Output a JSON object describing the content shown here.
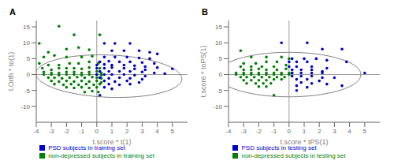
{
  "chart_data": [
    {
      "type": "scatter",
      "title": "A",
      "x_label": "t.score * t(1)",
      "y_label": "t.Orth * to(1)",
      "xlim": [
        -4,
        6
      ],
      "ylim": [
        -15,
        17
      ],
      "xticks": [
        -4,
        -3,
        -2,
        -1,
        0,
        1,
        2,
        3,
        4,
        5
      ],
      "yticks": [
        -10,
        -5,
        0,
        5,
        10,
        15
      ],
      "grid": false,
      "legend": "bottom",
      "reference_lines": {
        "x": [
          0
        ],
        "y": [
          0
        ]
      },
      "ellipse": {
        "center": [
          0.8,
          -0.5
        ],
        "width": 9.5,
        "height": 13.5,
        "angle": 10,
        "color": "#808080"
      },
      "series": [
        {
          "name": "non-depressed subjects in training set",
          "color": "#008000",
          "values": [
            [
              -3.8,
              9.8
            ],
            [
              -2.5,
              15.2
            ],
            [
              -1.5,
              12.5
            ],
            [
              0.2,
              12.5
            ],
            [
              -3.2,
              7.0
            ],
            [
              -2.0,
              8.0
            ],
            [
              -1.2,
              8.5
            ],
            [
              -0.5,
              7.8
            ],
            [
              -3.5,
              5.5
            ],
            [
              -2.8,
              6.0
            ],
            [
              -2.0,
              5.5
            ],
            [
              -1.0,
              5.5
            ],
            [
              -0.3,
              5.8
            ],
            [
              -3.8,
              3.5
            ],
            [
              -3.2,
              3.0
            ],
            [
              -2.5,
              3.0
            ],
            [
              -1.8,
              3.5
            ],
            [
              -1.2,
              3.5
            ],
            [
              -0.5,
              4.0
            ],
            [
              0.1,
              3.5
            ],
            [
              -3.6,
              2.0
            ],
            [
              -3.0,
              1.5
            ],
            [
              -2.5,
              2.0
            ],
            [
              -2.0,
              2.0
            ],
            [
              -1.5,
              2.0
            ],
            [
              -1.0,
              1.8
            ],
            [
              -0.5,
              2.2
            ],
            [
              0.2,
              2.0
            ],
            [
              -3.5,
              0.8
            ],
            [
              -3.0,
              0.5
            ],
            [
              -2.5,
              0.5
            ],
            [
              -2.0,
              0.8
            ],
            [
              -1.5,
              0.8
            ],
            [
              -1.0,
              0.5
            ],
            [
              -0.5,
              0.8
            ],
            [
              0.0,
              1.0
            ],
            [
              0.3,
              0.5
            ],
            [
              -3.5,
              0.0
            ],
            [
              -3.0,
              0.0
            ],
            [
              -2.5,
              -0.2
            ],
            [
              -2.0,
              0.0
            ],
            [
              -1.5,
              0.0
            ],
            [
              -1.0,
              -0.2
            ],
            [
              -0.5,
              0.0
            ],
            [
              0.0,
              0.0
            ],
            [
              0.3,
              -0.2
            ],
            [
              -3.2,
              -1.0
            ],
            [
              -2.8,
              -1.0
            ],
            [
              -2.3,
              -1.2
            ],
            [
              -1.8,
              -1.0
            ],
            [
              -1.3,
              -0.8
            ],
            [
              -0.8,
              -1.0
            ],
            [
              -0.3,
              -0.8
            ],
            [
              0.0,
              -1.0
            ],
            [
              0.3,
              -1.2
            ],
            [
              -3.0,
              -2.0
            ],
            [
              -2.5,
              -2.2
            ],
            [
              -2.0,
              -2.0
            ],
            [
              -1.5,
              -2.2
            ],
            [
              -1.0,
              -2.0
            ],
            [
              -0.5,
              -2.2
            ],
            [
              0.0,
              -2.0
            ],
            [
              0.3,
              -2.5
            ],
            [
              -2.8,
              -3.0
            ],
            [
              -2.2,
              -3.2
            ],
            [
              -1.7,
              -3.0
            ],
            [
              -1.2,
              -3.2
            ],
            [
              -0.7,
              -3.0
            ],
            [
              -0.2,
              -3.2
            ],
            [
              0.2,
              -3.0
            ],
            [
              -2.0,
              -4.0
            ],
            [
              -1.5,
              -4.2
            ],
            [
              -1.0,
              -4.0
            ],
            [
              -0.5,
              -4.2
            ],
            [
              0.0,
              -4.0
            ],
            [
              -0.8,
              -5.5
            ],
            [
              -0.3,
              -5.2
            ],
            [
              0.1,
              -5.5
            ]
          ]
        },
        {
          "name": "PSD subjects in training set",
          "color": "#0000CD",
          "values": [
            [
              0.5,
              9.8
            ],
            [
              1.2,
              9.8
            ],
            [
              2.2,
              9.8
            ],
            [
              1.0,
              7.5
            ],
            [
              1.8,
              7.5
            ],
            [
              2.8,
              7.5
            ],
            [
              3.5,
              7.0
            ],
            [
              4.0,
              6.5
            ],
            [
              0.5,
              5.5
            ],
            [
              1.2,
              5.5
            ],
            [
              2.0,
              5.5
            ],
            [
              2.8,
              5.2
            ],
            [
              3.5,
              5.0
            ],
            [
              0.2,
              4.0
            ],
            [
              0.8,
              4.2
            ],
            [
              1.5,
              4.0
            ],
            [
              2.2,
              4.0
            ],
            [
              3.0,
              3.8
            ],
            [
              3.8,
              3.5
            ],
            [
              0.0,
              3.0
            ],
            [
              0.5,
              3.2
            ],
            [
              1.0,
              3.0
            ],
            [
              1.8,
              3.0
            ],
            [
              2.5,
              2.8
            ],
            [
              3.2,
              2.5
            ],
            [
              4.0,
              2.2
            ],
            [
              5.0,
              1.8
            ],
            [
              0.0,
              2.0
            ],
            [
              0.5,
              2.0
            ],
            [
              1.0,
              2.2
            ],
            [
              1.8,
              2.0
            ],
            [
              2.5,
              1.8
            ],
            [
              3.2,
              1.5
            ],
            [
              0.2,
              1.0
            ],
            [
              0.8,
              1.0
            ],
            [
              1.5,
              1.0
            ],
            [
              2.2,
              1.0
            ],
            [
              3.0,
              0.8
            ],
            [
              3.8,
              0.5
            ],
            [
              4.5,
              0.3
            ],
            [
              0.0,
              0.0
            ],
            [
              0.5,
              0.0
            ],
            [
              1.0,
              0.0
            ],
            [
              1.8,
              0.0
            ],
            [
              2.5,
              -0.2
            ],
            [
              3.2,
              -0.5
            ],
            [
              0.2,
              -1.0
            ],
            [
              0.8,
              -1.2
            ],
            [
              1.5,
              -1.0
            ],
            [
              2.2,
              -1.2
            ],
            [
              3.0,
              -1.5
            ],
            [
              0.5,
              -2.0
            ],
            [
              1.2,
              -2.2
            ],
            [
              2.0,
              -2.0
            ],
            [
              2.8,
              -2.5
            ],
            [
              0.8,
              -3.0
            ],
            [
              1.5,
              -3.2
            ],
            [
              2.2,
              -3.0
            ],
            [
              0.5,
              -4.0
            ],
            [
              1.0,
              -4.5
            ],
            [
              0.2,
              -6.5
            ]
          ]
        }
      ]
    },
    {
      "type": "scatter",
      "title": "B",
      "x_label": "t.score * tPS(1)",
      "y_label": "t.score * toPS(1)",
      "xlim": [
        -4,
        6
      ],
      "ylim": [
        -15,
        17
      ],
      "xticks": [
        -4,
        -3,
        -2,
        -1,
        0,
        1,
        2,
        3,
        4,
        5
      ],
      "yticks": [
        -10,
        -5,
        0,
        5,
        10,
        15
      ],
      "grid": false,
      "legend": "bottom",
      "reference_lines": {
        "x": [
          0
        ],
        "y": [
          0
        ]
      },
      "ellipse": {
        "center": [
          0.0,
          0.0
        ],
        "width": 9.5,
        "height": 14.0,
        "angle": 0,
        "color": "#808080"
      },
      "series": [
        {
          "name": "non-depressed subjects in testing set",
          "color": "#008000",
          "values": [
            [
              -3.2,
              7.5
            ],
            [
              -2.5,
              5.5
            ],
            [
              -1.5,
              5.5
            ],
            [
              -0.5,
              5.5
            ],
            [
              -3.0,
              3.5
            ],
            [
              -2.2,
              3.5
            ],
            [
              -1.5,
              4.0
            ],
            [
              -0.8,
              4.0
            ],
            [
              0.0,
              5.0
            ],
            [
              -3.2,
              2.5
            ],
            [
              -2.5,
              2.5
            ],
            [
              -1.8,
              2.5
            ],
            [
              -1.0,
              2.5
            ],
            [
              -0.2,
              3.0
            ],
            [
              -3.0,
              1.5
            ],
            [
              -2.5,
              1.5
            ],
            [
              -2.0,
              1.8
            ],
            [
              -1.5,
              1.5
            ],
            [
              -0.8,
              1.5
            ],
            [
              -0.2,
              1.8
            ],
            [
              -3.5,
              0.5
            ],
            [
              -3.0,
              0.5
            ],
            [
              -2.5,
              0.5
            ],
            [
              -2.0,
              0.5
            ],
            [
              -1.5,
              0.5
            ],
            [
              -1.0,
              0.5
            ],
            [
              -0.5,
              0.5
            ],
            [
              0.0,
              0.5
            ],
            [
              0.2,
              0.5
            ],
            [
              -3.5,
              0.0
            ],
            [
              -3.0,
              0.0
            ],
            [
              -2.5,
              0.0
            ],
            [
              -2.0,
              0.0
            ],
            [
              -1.5,
              0.0
            ],
            [
              -1.0,
              0.0
            ],
            [
              -0.5,
              0.0
            ],
            [
              0.0,
              0.0
            ],
            [
              -3.2,
              -0.8
            ],
            [
              -2.8,
              -0.8
            ],
            [
              -2.3,
              -0.8
            ],
            [
              -1.8,
              -0.8
            ],
            [
              -1.3,
              -0.8
            ],
            [
              -0.8,
              -0.8
            ],
            [
              -0.3,
              -0.8
            ],
            [
              -3.0,
              -1.8
            ],
            [
              -2.5,
              -1.8
            ],
            [
              -2.0,
              -1.8
            ],
            [
              -1.5,
              -1.8
            ],
            [
              -1.0,
              -1.5
            ],
            [
              -0.5,
              -1.5
            ],
            [
              -2.8,
              -2.8
            ],
            [
              -2.2,
              -2.8
            ],
            [
              -1.7,
              -2.8
            ],
            [
              -1.2,
              -2.8
            ],
            [
              -2.0,
              -3.8
            ],
            [
              -1.5,
              -3.8
            ],
            [
              -1.0,
              -6.5
            ]
          ]
        },
        {
          "name": "PSD subjects in testing set",
          "color": "#0000CD",
          "values": [
            [
              -0.5,
              10.0
            ],
            [
              1.2,
              10.0
            ],
            [
              2.2,
              8.0
            ],
            [
              3.5,
              8.0
            ],
            [
              0.2,
              5.0
            ],
            [
              1.0,
              5.0
            ],
            [
              1.8,
              5.0
            ],
            [
              2.5,
              4.5
            ],
            [
              0.0,
              4.0
            ],
            [
              0.5,
              4.0
            ],
            [
              1.2,
              4.0
            ],
            [
              3.8,
              4.0
            ],
            [
              0.0,
              2.5
            ],
            [
              0.5,
              2.5
            ],
            [
              1.5,
              2.5
            ],
            [
              2.5,
              2.0
            ],
            [
              0.2,
              1.5
            ],
            [
              0.8,
              1.5
            ],
            [
              1.5,
              1.5
            ],
            [
              2.2,
              1.0
            ],
            [
              5.0,
              0.5
            ],
            [
              0.2,
              0.5
            ],
            [
              0.8,
              0.5
            ],
            [
              1.5,
              0.5
            ],
            [
              2.2,
              0.5
            ],
            [
              0.2,
              -0.5
            ],
            [
              0.8,
              -0.5
            ],
            [
              1.5,
              -0.5
            ],
            [
              2.2,
              -1.0
            ],
            [
              3.0,
              -1.0
            ],
            [
              0.5,
              -1.5
            ],
            [
              1.2,
              -1.5
            ],
            [
              2.0,
              -2.0
            ],
            [
              0.8,
              -2.5
            ],
            [
              1.5,
              -2.8
            ],
            [
              2.5,
              -3.0
            ],
            [
              0.5,
              -3.5
            ],
            [
              1.2,
              -4.0
            ],
            [
              0.5,
              -5.0
            ],
            [
              3.5,
              -3.5
            ]
          ]
        }
      ]
    }
  ]
}
